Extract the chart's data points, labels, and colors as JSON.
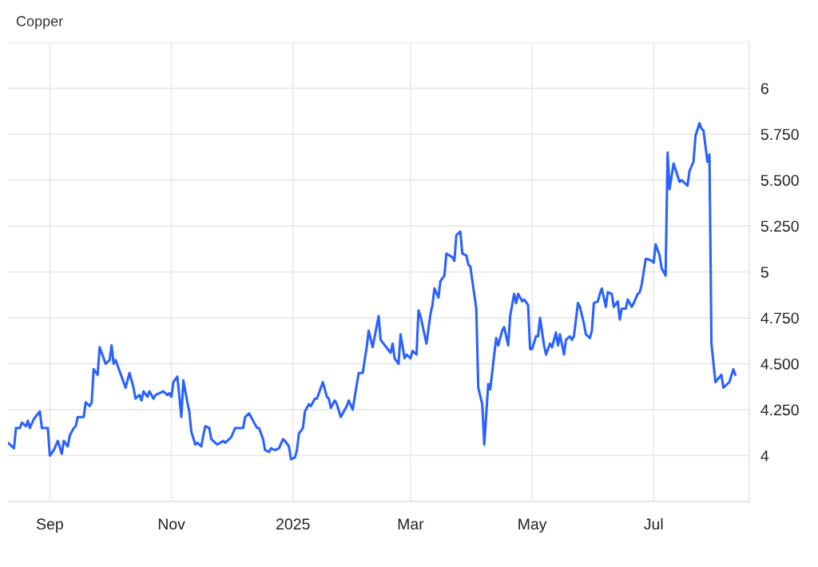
{
  "chart_data": {
    "type": "line",
    "title": "Copper",
    "x": [
      "2024-08-11",
      "2024-08-14",
      "2024-08-15",
      "2024-08-17",
      "2024-08-18",
      "2024-08-20",
      "2024-08-21",
      "2024-08-22",
      "2024-08-24",
      "2024-08-27",
      "2024-08-28",
      "2024-08-31",
      "2024-09-01",
      "2024-09-03",
      "2024-09-05",
      "2024-09-07",
      "2024-09-08",
      "2024-09-10",
      "2024-09-11",
      "2024-09-13",
      "2024-09-14",
      "2024-09-15",
      "2024-09-18",
      "2024-09-19",
      "2024-09-21",
      "2024-09-22",
      "2024-09-23",
      "2024-09-25",
      "2024-09-26",
      "2024-09-28",
      "2024-09-29",
      "2024-10-01",
      "2024-10-02",
      "2024-10-03",
      "2024-10-04",
      "2024-10-07",
      "2024-10-09",
      "2024-10-11",
      "2024-10-13",
      "2024-10-14",
      "2024-10-16",
      "2024-10-17",
      "2024-10-18",
      "2024-10-20",
      "2024-10-21",
      "2024-10-23",
      "2024-10-24",
      "2024-10-28",
      "2024-10-30",
      "2024-10-31",
      "2024-11-01",
      "2024-11-02",
      "2024-11-04",
      "2024-11-06",
      "2024-11-07",
      "2024-11-09",
      "2024-11-10",
      "2024-11-11",
      "2024-11-13",
      "2024-11-14",
      "2024-11-16",
      "2024-11-17",
      "2024-11-18",
      "2024-11-20",
      "2024-11-21",
      "2024-11-24",
      "2024-11-27",
      "2024-11-28",
      "2024-11-30",
      "2024-12-01",
      "2024-12-03",
      "2024-12-07",
      "2024-12-08",
      "2024-12-10",
      "2024-12-11",
      "2024-12-14",
      "2024-12-15",
      "2024-12-17",
      "2024-12-18",
      "2024-12-20",
      "2024-12-21",
      "2024-12-23",
      "2024-12-25",
      "2024-12-27",
      "2024-12-28",
      "2024-12-30",
      "2024-12-31",
      "2025-01-02",
      "2025-01-03",
      "2025-01-04",
      "2025-01-06",
      "2025-01-07",
      "2025-01-09",
      "2025-01-10",
      "2025-01-12",
      "2025-01-13",
      "2025-01-15",
      "2025-01-16",
      "2025-01-18",
      "2025-01-19",
      "2025-01-20",
      "2025-01-22",
      "2025-01-23",
      "2025-01-25",
      "2025-01-26",
      "2025-01-28",
      "2025-01-29",
      "2025-01-31",
      "2025-02-01",
      "2025-02-03",
      "2025-02-05",
      "2025-02-07",
      "2025-02-08",
      "2025-02-10",
      "2025-02-13",
      "2025-02-14",
      "2025-02-19",
      "2025-02-20",
      "2025-02-21",
      "2025-02-23",
      "2025-02-24",
      "2025-02-26",
      "2025-02-27",
      "2025-03-01",
      "2025-03-02",
      "2025-03-04",
      "2025-03-05",
      "2025-03-06",
      "2025-03-09",
      "2025-03-11",
      "2025-03-12",
      "2025-03-13",
      "2025-03-15",
      "2025-03-16",
      "2025-03-18",
      "2025-03-19",
      "2025-03-22",
      "2025-03-23",
      "2025-03-24",
      "2025-03-26",
      "2025-03-27",
      "2025-03-29",
      "2025-03-30",
      "2025-03-31",
      "2025-04-03",
      "2025-04-04",
      "2025-04-06",
      "2025-04-07",
      "2025-04-09",
      "2025-04-10",
      "2025-04-12",
      "2025-04-13",
      "2025-04-14",
      "2025-04-16",
      "2025-04-17",
      "2025-04-19",
      "2025-04-20",
      "2025-04-22",
      "2025-04-23",
      "2025-04-24",
      "2025-04-26",
      "2025-04-27",
      "2025-04-29",
      "2025-04-30",
      "2025-05-01",
      "2025-05-03",
      "2025-05-04",
      "2025-05-05",
      "2025-05-07",
      "2025-05-08",
      "2025-05-10",
      "2025-05-11",
      "2025-05-13",
      "2025-05-14",
      "2025-05-15",
      "2025-05-17",
      "2025-05-18",
      "2025-05-20",
      "2025-05-21",
      "2025-05-22",
      "2025-05-24",
      "2025-05-25",
      "2025-05-27",
      "2025-05-28",
      "2025-05-30",
      "2025-05-31",
      "2025-06-01",
      "2025-06-03",
      "2025-06-04",
      "2025-06-05",
      "2025-06-07",
      "2025-06-08",
      "2025-06-10",
      "2025-06-11",
      "2025-06-13",
      "2025-06-14",
      "2025-06-15",
      "2025-06-17",
      "2025-06-18",
      "2025-06-20",
      "2025-06-21",
      "2025-06-23",
      "2025-06-24",
      "2025-06-25",
      "2025-06-27",
      "2025-06-28",
      "2025-06-30",
      "2025-07-01",
      "2025-07-02",
      "2025-07-04",
      "2025-07-05",
      "2025-07-07",
      "2025-07-08",
      "2025-07-09",
      "2025-07-11",
      "2025-07-14",
      "2025-07-15",
      "2025-07-18",
      "2025-07-19",
      "2025-07-21",
      "2025-07-22",
      "2025-07-24",
      "2025-07-25",
      "2025-07-26",
      "2025-07-28",
      "2025-07-29",
      "2025-07-30",
      "2025-08-01",
      "2025-08-04",
      "2025-08-05",
      "2025-08-08",
      "2025-08-10",
      "2025-08-11"
    ],
    "series": [
      {
        "color": "#2962ff",
        "values": [
          4.07,
          4.04,
          4.15,
          4.15,
          4.18,
          4.16,
          4.19,
          4.15,
          4.2,
          4.24,
          4.15,
          4.15,
          4.0,
          4.03,
          4.08,
          4.01,
          4.08,
          4.05,
          4.11,
          4.15,
          4.16,
          4.21,
          4.21,
          4.29,
          4.27,
          4.29,
          4.47,
          4.44,
          4.59,
          4.53,
          4.5,
          4.52,
          4.6,
          4.5,
          4.52,
          4.43,
          4.37,
          4.45,
          4.37,
          4.31,
          4.33,
          4.3,
          4.35,
          4.32,
          4.35,
          4.31,
          4.33,
          4.35,
          4.33,
          4.34,
          4.32,
          4.4,
          4.43,
          4.21,
          4.41,
          4.29,
          4.24,
          4.13,
          4.06,
          4.07,
          4.05,
          4.11,
          4.16,
          4.15,
          4.09,
          4.06,
          4.08,
          4.07,
          4.09,
          4.1,
          4.15,
          4.15,
          4.21,
          4.23,
          4.21,
          4.15,
          4.15,
          4.09,
          4.03,
          4.02,
          4.04,
          4.03,
          4.04,
          4.09,
          4.08,
          4.05,
          3.98,
          3.99,
          4.03,
          4.12,
          4.15,
          4.24,
          4.28,
          4.27,
          4.31,
          4.31,
          4.37,
          4.4,
          4.32,
          4.31,
          4.26,
          4.3,
          4.28,
          4.21,
          4.23,
          4.27,
          4.3,
          4.25,
          4.32,
          4.45,
          4.45,
          4.59,
          4.68,
          4.59,
          4.76,
          4.63,
          4.56,
          4.61,
          4.53,
          4.5,
          4.66,
          4.53,
          4.55,
          4.53,
          4.57,
          4.55,
          4.79,
          4.76,
          4.61,
          4.77,
          4.82,
          4.91,
          4.86,
          4.95,
          4.98,
          5.1,
          5.08,
          5.06,
          5.2,
          5.22,
          5.1,
          5.09,
          5.04,
          5.03,
          4.8,
          4.37,
          4.28,
          4.06,
          4.39,
          4.36,
          4.55,
          4.64,
          4.6,
          4.68,
          4.7,
          4.6,
          4.76,
          4.88,
          4.83,
          4.88,
          4.84,
          4.85,
          4.82,
          4.58,
          4.58,
          4.65,
          4.65,
          4.75,
          4.6,
          4.55,
          4.61,
          4.59,
          4.67,
          4.6,
          4.66,
          4.55,
          4.63,
          4.65,
          4.63,
          4.65,
          4.83,
          4.81,
          4.72,
          4.66,
          4.64,
          4.68,
          4.83,
          4.84,
          4.88,
          4.91,
          4.81,
          4.89,
          4.88,
          4.81,
          4.84,
          4.74,
          4.8,
          4.8,
          4.85,
          4.81,
          4.83,
          4.88,
          4.89,
          4.93,
          5.07,
          5.07,
          5.06,
          5.05,
          5.15,
          5.09,
          5.02,
          4.98,
          5.65,
          5.45,
          5.59,
          5.49,
          5.5,
          5.47,
          5.55,
          5.6,
          5.74,
          5.81,
          5.78,
          5.77,
          5.6,
          5.64,
          4.61,
          4.4,
          4.44,
          4.37,
          4.4,
          4.47,
          4.44
        ]
      }
    ],
    "xlim": [
      "2024-08-11",
      "2025-08-18"
    ],
    "xticks": [
      {
        "value": "2024-09-01",
        "label": "Sep"
      },
      {
        "value": "2024-11-01",
        "label": "Nov"
      },
      {
        "value": "2025-01-01",
        "label": "2025"
      },
      {
        "value": "2025-03-01",
        "label": "Mar"
      },
      {
        "value": "2025-05-01",
        "label": "May"
      },
      {
        "value": "2025-07-01",
        "label": "Jul"
      }
    ],
    "ylim": [
      3.75,
      6.25
    ],
    "yticks": [
      {
        "value": 3.75,
        "label": null
      },
      4,
      {
        "value": 4.25,
        "label": "4.250"
      },
      {
        "value": 4.5,
        "label": "4.500"
      },
      {
        "value": 4.75,
        "label": "4.750"
      },
      5,
      {
        "value": 5.25,
        "label": "5.250"
      },
      {
        "value": 5.5,
        "label": "5.500"
      },
      {
        "value": 5.75,
        "label": "5.750"
      },
      6,
      {
        "value": 6.25,
        "label": null
      }
    ],
    "grid": true,
    "line_style": "solid"
  }
}
